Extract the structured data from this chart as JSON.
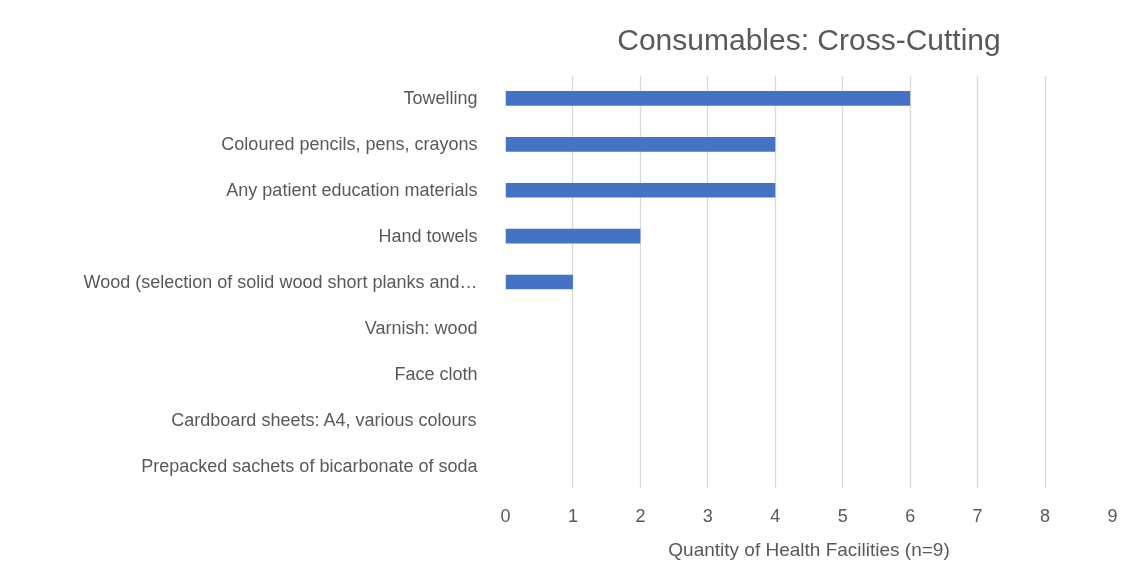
{
  "chart_data": {
    "type": "bar",
    "orientation": "horizontal",
    "title": "Consumables: Cross-Cutting",
    "xlabel": "Quantity of Health Facilities (n=9)",
    "categories": [
      "Towelling",
      "Coloured pencils, pens, crayons",
      "Any patient education materials",
      "Hand towels",
      "Wood (selection of solid wood short planks and…",
      "Varnish: wood",
      "Face cloth",
      "Cardboard sheets: A4, various colours",
      "Prepacked sachets of bicarbonate of soda"
    ],
    "values": [
      6,
      4,
      4,
      2,
      1,
      0,
      0,
      0,
      0
    ],
    "color": "#4472c4",
    "xlim": [
      0,
      9
    ],
    "xticks": [
      0,
      1,
      2,
      3,
      4,
      5,
      6,
      7,
      8,
      9
    ],
    "grid": "x"
  }
}
